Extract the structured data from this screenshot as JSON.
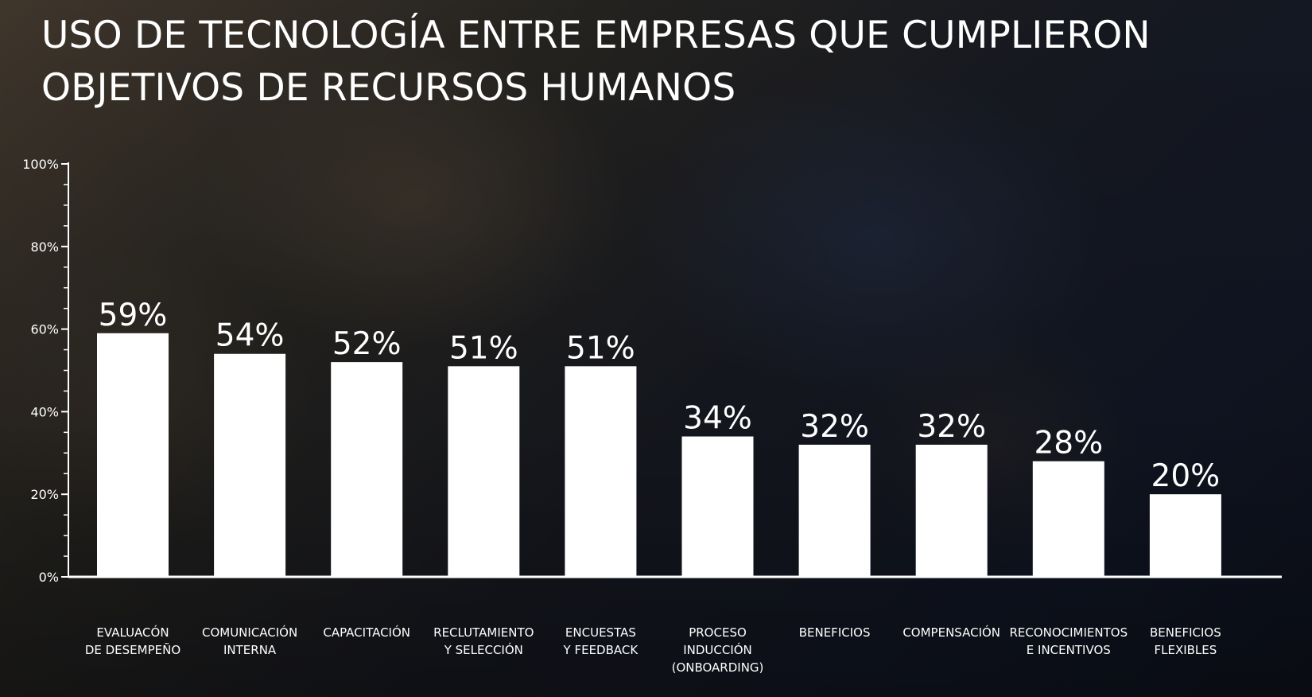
{
  "title_line1": "USO DE TECNOLOGÍA ENTRE EMPRESAS QUE CUMPLIERON",
  "title_line2": "OBJETIVOS DE RECURSOS HUMANOS",
  "colors": {
    "bar": "#ffffff",
    "text": "#ffffff",
    "axis": "#ffffff"
  },
  "chart_data": {
    "type": "bar",
    "title": "USO DE TECNOLOGÍA ENTRE EMPRESAS QUE CUMPLIERON OBJETIVOS DE RECURSOS HUMANOS",
    "categories": [
      "EVALUACÓN\nDE DESEMPEÑO",
      "COMUNICACIÓN\nINTERNA",
      "CAPACITACIÓN",
      "RECLUTAMIENTO\nY SELECCIÓN",
      "ENCUESTAS\nY FEEDBACK",
      "PROCESO\nINDUCCIÓN\n(ONBOARDING)",
      "BENEFICIOS",
      "COMPENSACIÓN",
      "RECONOCIMIENTOS\nE INCENTIVOS",
      "BENEFICIOS\nFLEXIBLES"
    ],
    "values": [
      59,
      54,
      52,
      51,
      51,
      34,
      32,
      32,
      28,
      20
    ],
    "value_labels": [
      "59%",
      "54%",
      "52%",
      "51%",
      "51%",
      "34%",
      "32%",
      "32%",
      "28%",
      "20%"
    ],
    "ylim": [
      0,
      100
    ],
    "yticks": [
      0,
      20,
      40,
      60,
      80,
      100
    ],
    "ytick_labels": [
      "0%",
      "20%",
      "40%",
      "60%",
      "80%",
      "100%"
    ],
    "xlabel": "",
    "ylabel": "",
    "grid": false,
    "legend": "none"
  }
}
